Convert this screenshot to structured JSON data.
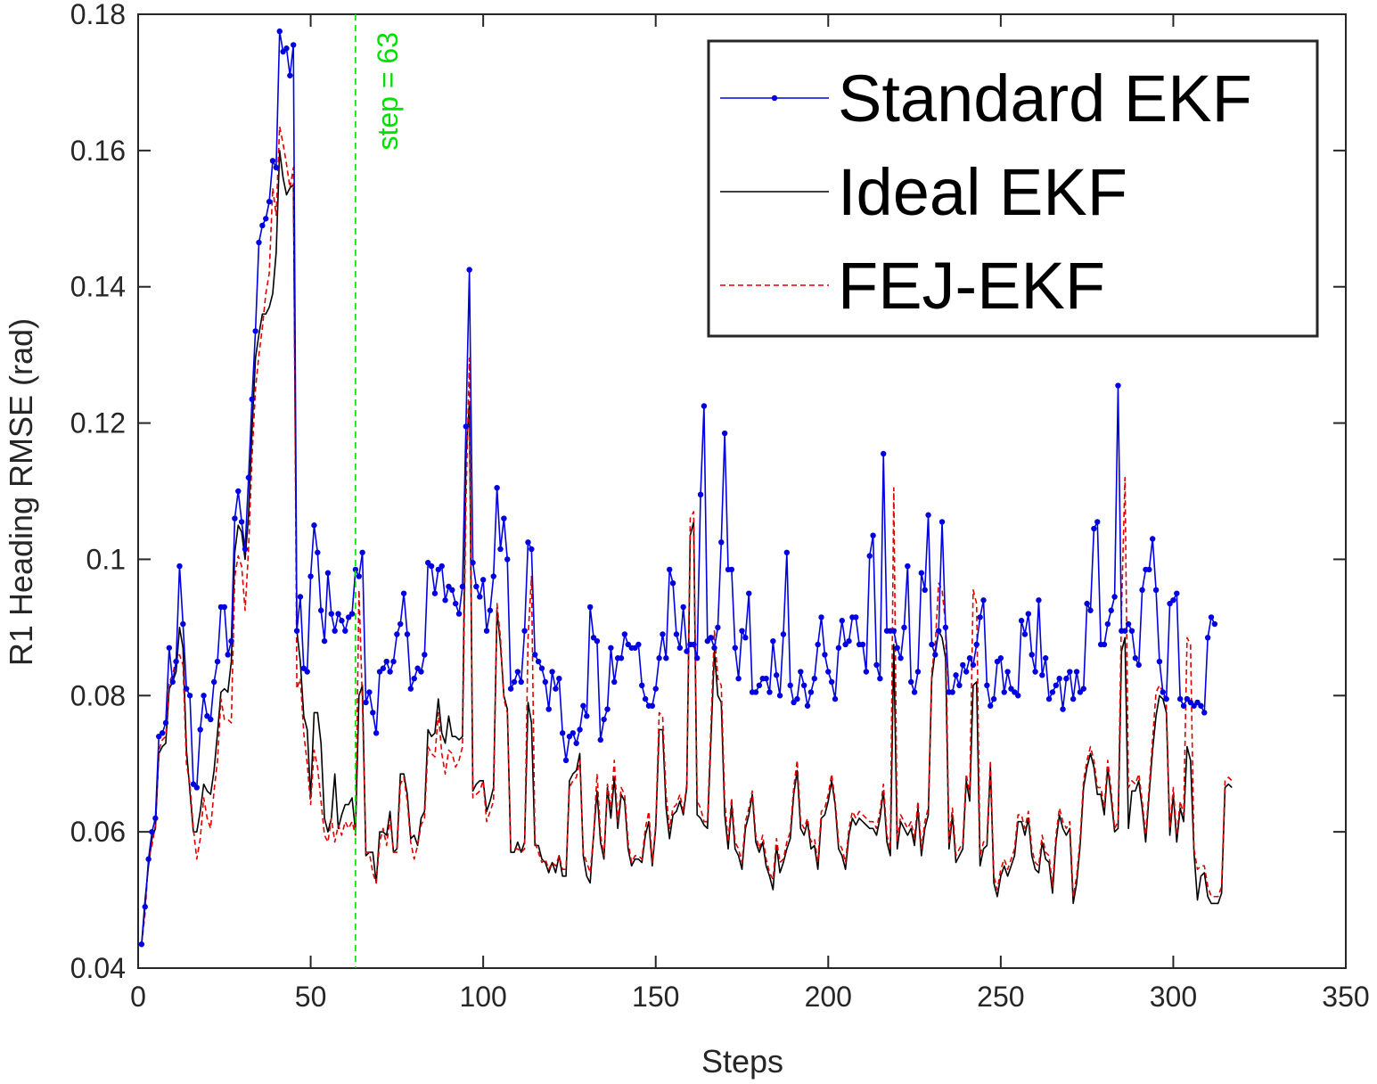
{
  "chart_data": {
    "type": "line",
    "title": "",
    "xlabel": "Steps",
    "ylabel": "R1 Heading RMSE (rad)",
    "xlim": [
      0,
      350
    ],
    "ylim": [
      0.04,
      0.18
    ],
    "xticks": [
      "0",
      "50",
      "100",
      "150",
      "200",
      "250",
      "300",
      "350"
    ],
    "yticks": [
      "0.04",
      "0.06",
      "0.08",
      "0.1",
      "0.12",
      "0.14",
      "0.16",
      "0.18"
    ],
    "grid": false,
    "legend_position": "top-right",
    "annotation": {
      "text": "step = 63",
      "x": 63,
      "color": "#00e000"
    },
    "series": [
      {
        "name": "Standard EKF",
        "color": "#0000e0",
        "style": "solid-dot",
        "values": [
          0.0435,
          0.049,
          0.056,
          0.06,
          0.062,
          0.074,
          0.0745,
          0.076,
          0.087,
          0.082,
          0.085,
          0.099,
          0.0905,
          0.081,
          0.08,
          0.067,
          0.0665,
          0.075,
          0.08,
          0.077,
          0.0765,
          0.082,
          0.085,
          0.093,
          0.093,
          0.086,
          0.088,
          0.106,
          0.11,
          0.1055,
          0.1015,
          0.112,
          0.1235,
          0.1335,
          0.1465,
          0.149,
          0.15,
          0.1525,
          0.1585,
          0.1575,
          0.1775,
          0.1745,
          0.175,
          0.171,
          0.1755,
          0.0895,
          0.0945,
          0.084,
          0.0835,
          0.0975,
          0.105,
          0.101,
          0.0925,
          0.088,
          0.098,
          0.092,
          0.0895,
          0.092,
          0.091,
          0.0895,
          0.0915,
          0.092,
          0.0985,
          0.0975,
          0.101,
          0.079,
          0.0805,
          0.0775,
          0.0745,
          0.0835,
          0.084,
          0.085,
          0.0835,
          0.085,
          0.089,
          0.0905,
          0.095,
          0.089,
          0.081,
          0.0825,
          0.084,
          0.0835,
          0.086,
          0.0995,
          0.099,
          0.095,
          0.0985,
          0.099,
          0.094,
          0.096,
          0.0955,
          0.0935,
          0.092,
          0.096,
          0.1195,
          0.1425,
          0.0995,
          0.096,
          0.0945,
          0.097,
          0.0895,
          0.0925,
          0.0975,
          0.1105,
          0.1015,
          0.106,
          0.1,
          0.081,
          0.082,
          0.0835,
          0.082,
          0.0895,
          0.1025,
          0.1015,
          0.086,
          0.085,
          0.084,
          0.082,
          0.078,
          0.0835,
          0.081,
          0.0825,
          0.0745,
          0.0705,
          0.074,
          0.0745,
          0.073,
          0.075,
          0.0785,
          0.077,
          0.093,
          0.0885,
          0.088,
          0.0735,
          0.0765,
          0.078,
          0.087,
          0.082,
          0.0855,
          0.0855,
          0.089,
          0.0875,
          0.087,
          0.087,
          0.0875,
          0.0815,
          0.0795,
          0.0785,
          0.0785,
          0.081,
          0.0855,
          0.089,
          0.0855,
          0.0985,
          0.0965,
          0.089,
          0.087,
          0.093,
          0.0865,
          0.0875,
          0.0875,
          0.0855,
          0.1095,
          0.1225,
          0.088,
          0.0885,
          0.087,
          0.09,
          0.1025,
          0.1185,
          0.0985,
          0.0985,
          0.087,
          0.0825,
          0.0895,
          0.0885,
          0.095,
          0.0805,
          0.0805,
          0.0815,
          0.0825,
          0.0825,
          0.0805,
          0.088,
          0.083,
          0.08,
          0.089,
          0.101,
          0.0815,
          0.079,
          0.0795,
          0.0835,
          0.0815,
          0.0785,
          0.0805,
          0.0825,
          0.0875,
          0.0915,
          0.086,
          0.0835,
          0.082,
          0.0795,
          0.087,
          0.091,
          0.0875,
          0.088,
          0.0915,
          0.0915,
          0.0875,
          0.0875,
          0.0835,
          0.1005,
          0.1035,
          0.0845,
          0.0825,
          0.1155,
          0.0895,
          0.0895,
          0.0895,
          0.087,
          0.0855,
          0.09,
          0.099,
          0.082,
          0.0805,
          0.0835,
          0.098,
          0.0955,
          0.1065,
          0.0875,
          0.086,
          0.0895,
          0.1055,
          0.09,
          0.0805,
          0.0805,
          0.083,
          0.0815,
          0.0845,
          0.0835,
          0.0855,
          0.0845,
          0.0875,
          0.0915,
          0.094,
          0.0815,
          0.0785,
          0.0795,
          0.085,
          0.0855,
          0.0805,
          0.0835,
          0.081,
          0.0805,
          0.08,
          0.091,
          0.089,
          0.092,
          0.086,
          0.0835,
          0.094,
          0.083,
          0.0855,
          0.0795,
          0.0805,
          0.0815,
          0.0825,
          0.078,
          0.0825,
          0.0835,
          0.0795,
          0.0835,
          0.0805,
          0.081,
          0.0935,
          0.0925,
          0.1045,
          0.1055,
          0.0875,
          0.0875,
          0.0905,
          0.0925,
          0.0945,
          0.1255,
          0.0895,
          0.0895,
          0.0905,
          0.0895,
          0.0855,
          0.0845,
          0.0955,
          0.0985,
          0.0985,
          0.103,
          0.0955,
          0.085,
          0.0805,
          0.0795,
          0.0935,
          0.094,
          0.095,
          0.0795,
          0.0785,
          0.0795,
          0.079,
          0.0785,
          0.079,
          0.0785,
          0.0775,
          0.0885,
          0.0915,
          0.0905
        ]
      },
      {
        "name": "Ideal EKF",
        "color": "#000000",
        "style": "solid",
        "values": [
          0.0435,
          0.05,
          0.055,
          0.059,
          0.0605,
          0.0715,
          0.0725,
          0.073,
          0.081,
          0.082,
          0.0835,
          0.09,
          0.087,
          0.072,
          0.066,
          0.06,
          0.06,
          0.063,
          0.067,
          0.066,
          0.0655,
          0.069,
          0.0745,
          0.0805,
          0.081,
          0.0805,
          0.085,
          0.101,
          0.105,
          0.104,
          0.1,
          0.1065,
          0.119,
          0.1295,
          0.133,
          0.136,
          0.136,
          0.137,
          0.139,
          0.145,
          0.16,
          0.156,
          0.1535,
          0.1545,
          0.155,
          0.0895,
          0.085,
          0.077,
          0.075,
          0.065,
          0.0775,
          0.0775,
          0.073,
          0.062,
          0.06,
          0.062,
          0.0685,
          0.0605,
          0.0625,
          0.064,
          0.064,
          0.065,
          0.06,
          0.08,
          0.0815,
          0.0565,
          0.057,
          0.057,
          0.0525,
          0.06,
          0.06,
          0.0595,
          0.063,
          0.057,
          0.0575,
          0.0685,
          0.0685,
          0.0655,
          0.059,
          0.0595,
          0.058,
          0.062,
          0.063,
          0.075,
          0.074,
          0.0745,
          0.0795,
          0.0745,
          0.073,
          0.077,
          0.074,
          0.074,
          0.0735,
          0.074,
          0.115,
          0.123,
          0.066,
          0.067,
          0.0675,
          0.0675,
          0.063,
          0.0645,
          0.0665,
          0.0925,
          0.0875,
          0.08,
          0.078,
          0.057,
          0.057,
          0.0585,
          0.057,
          0.0585,
          0.079,
          0.076,
          0.058,
          0.058,
          0.056,
          0.0555,
          0.054,
          0.0555,
          0.054,
          0.0565,
          0.0535,
          0.0535,
          0.0675,
          0.0685,
          0.069,
          0.0715,
          0.0565,
          0.0535,
          0.0525,
          0.0595,
          0.066,
          0.0585,
          0.056,
          0.0665,
          0.062,
          0.068,
          0.0605,
          0.0655,
          0.0645,
          0.0575,
          0.055,
          0.056,
          0.056,
          0.0555,
          0.0595,
          0.0615,
          0.055,
          0.0605,
          0.075,
          0.075,
          0.0635,
          0.059,
          0.0625,
          0.063,
          0.0645,
          0.0625,
          0.0665,
          0.1035,
          0.1055,
          0.0625,
          0.062,
          0.061,
          0.0605,
          0.0735,
          0.0865,
          0.08,
          0.079,
          0.0625,
          0.0575,
          0.064,
          0.0575,
          0.0565,
          0.0545,
          0.0605,
          0.0625,
          0.0655,
          0.0585,
          0.057,
          0.0585,
          0.055,
          0.0535,
          0.0515,
          0.058,
          0.054,
          0.0555,
          0.0575,
          0.059,
          0.0655,
          0.069,
          0.0605,
          0.0595,
          0.0615,
          0.0575,
          0.058,
          0.0545,
          0.062,
          0.0625,
          0.0645,
          0.0675,
          0.064,
          0.0575,
          0.0565,
          0.0545,
          0.0595,
          0.062,
          0.061,
          0.062,
          0.0615,
          0.061,
          0.0605,
          0.0605,
          0.0595,
          0.062,
          0.066,
          0.0585,
          0.0565,
          0.0875,
          0.0575,
          0.0615,
          0.0605,
          0.0595,
          0.0605,
          0.058,
          0.0635,
          0.0565,
          0.0605,
          0.0625,
          0.0825,
          0.0865,
          0.0895,
          0.0885,
          0.0855,
          0.0575,
          0.0625,
          0.0555,
          0.0565,
          0.0575,
          0.0675,
          0.0645,
          0.0815,
          0.082,
          0.055,
          0.0575,
          0.058,
          0.0695,
          0.0525,
          0.0505,
          0.0535,
          0.055,
          0.0535,
          0.055,
          0.0565,
          0.0615,
          0.0615,
          0.0595,
          0.062,
          0.0565,
          0.0545,
          0.054,
          0.0585,
          0.056,
          0.0555,
          0.051,
          0.0585,
          0.0625,
          0.0605,
          0.0595,
          0.0605,
          0.0495,
          0.0525,
          0.058,
          0.0665,
          0.0695,
          0.0715,
          0.0695,
          0.0655,
          0.0655,
          0.0625,
          0.0695,
          0.065,
          0.06,
          0.0605,
          0.0865,
          0.0885,
          0.0605,
          0.066,
          0.066,
          0.0675,
          0.0635,
          0.0585,
          0.0655,
          0.072,
          0.077,
          0.08,
          0.0795,
          0.0775,
          0.0595,
          0.0655,
          0.0585,
          0.0635,
          0.0615,
          0.0725,
          0.0705,
          0.057,
          0.05,
          0.0535,
          0.054,
          0.0505,
          0.0495,
          0.0495,
          0.0495,
          0.051,
          0.0665,
          0.067,
          0.0665
        ]
      },
      {
        "name": "FEJ-EKF",
        "color": "#e00000",
        "style": "dashed",
        "values": [
          0.0435,
          0.048,
          0.056,
          0.058,
          0.061,
          0.072,
          0.0735,
          0.074,
          0.082,
          0.083,
          0.0855,
          0.086,
          0.0845,
          0.07,
          0.067,
          0.0605,
          0.056,
          0.059,
          0.065,
          0.062,
          0.0605,
          0.066,
          0.0705,
          0.0795,
          0.0765,
          0.0765,
          0.076,
          0.0975,
          0.1005,
          0.099,
          0.0925,
          0.1015,
          0.115,
          0.125,
          0.13,
          0.134,
          0.139,
          0.142,
          0.1545,
          0.1505,
          0.1635,
          0.161,
          0.158,
          0.1545,
          0.1575,
          0.081,
          0.0825,
          0.0745,
          0.07,
          0.064,
          0.072,
          0.0695,
          0.0645,
          0.0595,
          0.0585,
          0.062,
          0.0585,
          0.061,
          0.0595,
          0.0615,
          0.0605,
          0.0615,
          0.0595,
          0.0955,
          0.079,
          0.057,
          0.057,
          0.054,
          0.0525,
          0.0585,
          0.0605,
          0.058,
          0.062,
          0.057,
          0.057,
          0.067,
          0.068,
          0.0645,
          0.0585,
          0.056,
          0.058,
          0.061,
          0.062,
          0.0725,
          0.0715,
          0.071,
          0.0775,
          0.0715,
          0.0685,
          0.072,
          0.0715,
          0.0695,
          0.0705,
          0.0725,
          0.1085,
          0.1295,
          0.065,
          0.0655,
          0.066,
          0.0675,
          0.0615,
          0.063,
          0.0645,
          0.0935,
          0.0885,
          0.0795,
          0.0775,
          0.0575,
          0.0575,
          0.0575,
          0.057,
          0.0575,
          0.0885,
          0.0975,
          0.0585,
          0.057,
          0.0555,
          0.056,
          0.0545,
          0.0555,
          0.055,
          0.0565,
          0.0545,
          0.0545,
          0.0665,
          0.0675,
          0.068,
          0.0705,
          0.057,
          0.0555,
          0.054,
          0.0595,
          0.0685,
          0.0595,
          0.0565,
          0.067,
          0.0635,
          0.0705,
          0.0615,
          0.0665,
          0.0655,
          0.0585,
          0.0555,
          0.0565,
          0.0565,
          0.056,
          0.0605,
          0.063,
          0.0555,
          0.061,
          0.0775,
          0.077,
          0.0655,
          0.0605,
          0.0635,
          0.064,
          0.0655,
          0.063,
          0.067,
          0.106,
          0.107,
          0.0645,
          0.0635,
          0.0615,
          0.0615,
          0.0755,
          0.0895,
          0.0825,
          0.0815,
          0.0645,
          0.0585,
          0.065,
          0.0585,
          0.0575,
          0.0555,
          0.0615,
          0.0635,
          0.066,
          0.0595,
          0.0575,
          0.0595,
          0.056,
          0.054,
          0.053,
          0.059,
          0.0555,
          0.056,
          0.0585,
          0.06,
          0.0665,
          0.0705,
          0.0615,
          0.0605,
          0.062,
          0.0585,
          0.059,
          0.0555,
          0.063,
          0.0635,
          0.0655,
          0.0685,
          0.0645,
          0.0585,
          0.0575,
          0.0555,
          0.0605,
          0.063,
          0.062,
          0.063,
          0.0625,
          0.062,
          0.0615,
          0.0615,
          0.0605,
          0.063,
          0.067,
          0.0595,
          0.0575,
          0.1105,
          0.0585,
          0.0625,
          0.0615,
          0.0605,
          0.0615,
          0.059,
          0.0645,
          0.0575,
          0.0615,
          0.0635,
          0.0835,
          0.0875,
          0.0965,
          0.0955,
          0.0905,
          0.0585,
          0.0635,
          0.0565,
          0.0575,
          0.0585,
          0.0685,
          0.0655,
          0.0955,
          0.0935,
          0.0565,
          0.0585,
          0.059,
          0.0705,
          0.0535,
          0.0515,
          0.0545,
          0.056,
          0.0545,
          0.056,
          0.0575,
          0.0625,
          0.0625,
          0.0605,
          0.063,
          0.0575,
          0.0555,
          0.055,
          0.0595,
          0.057,
          0.0565,
          0.052,
          0.0595,
          0.0635,
          0.0615,
          0.0605,
          0.0615,
          0.0505,
          0.0535,
          0.059,
          0.0675,
          0.0705,
          0.0725,
          0.0705,
          0.0665,
          0.0665,
          0.0635,
          0.0705,
          0.066,
          0.0605,
          0.0615,
          0.0925,
          0.112,
          0.0665,
          0.0675,
          0.067,
          0.0685,
          0.0645,
          0.0595,
          0.0665,
          0.0735,
          0.0805,
          0.0815,
          0.0805,
          0.0785,
          0.0605,
          0.0665,
          0.0595,
          0.0645,
          0.0625,
          0.0885,
          0.0875,
          0.0575,
          0.0545,
          0.055,
          0.055,
          0.052,
          0.0505,
          0.0505,
          0.0505,
          0.052,
          0.0675,
          0.068,
          0.0675
        ]
      }
    ]
  }
}
